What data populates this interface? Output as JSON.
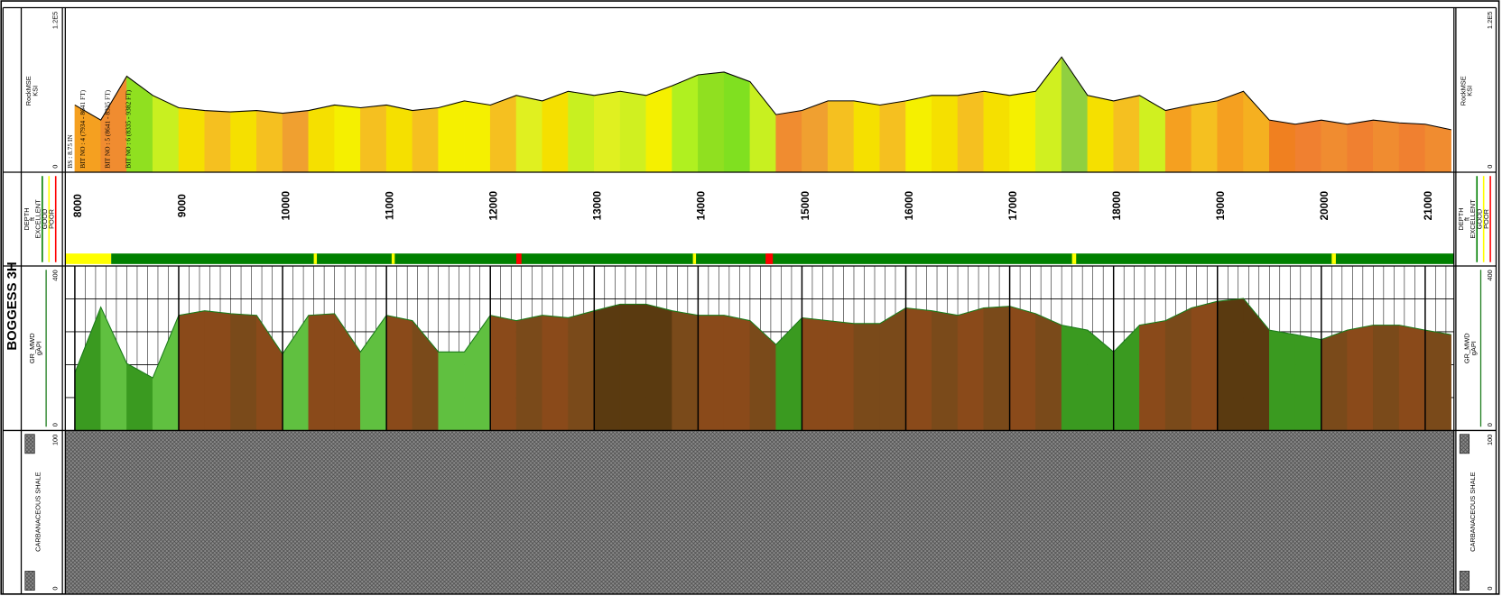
{
  "chart_data": {
    "type": "well_log",
    "well": "BOGGESS 3H",
    "depths": [
      8000,
      8250,
      8500,
      8750,
      9000,
      9250,
      9500,
      9750,
      10000,
      10250,
      10500,
      10750,
      11000,
      11250,
      11500,
      11750,
      12000,
      12250,
      12500,
      12750,
      13000,
      13250,
      13500,
      13750,
      14000,
      14250,
      14500,
      14750,
      15000,
      15250,
      15500,
      15750,
      16000,
      16250,
      16500,
      16750,
      17000,
      17250,
      17500,
      17750,
      18000,
      18250,
      18500,
      18750,
      19000,
      19250,
      19500,
      19750,
      20000,
      20250,
      20500,
      20750,
      21000,
      21250
    ],
    "mse": {
      "name": "RockMSE",
      "unit": "KSI",
      "ylim": [
        0,
        120000
      ],
      "yticks": [
        0,
        {
          "value": 120000,
          "label": "1.2E5"
        }
      ],
      "line_color": "#000000",
      "values": [
        49000,
        38000,
        70000,
        56000,
        47000,
        45000,
        44000,
        45000,
        43000,
        45000,
        49000,
        47000,
        49000,
        45000,
        47000,
        52000,
        49000,
        56000,
        52000,
        59000,
        56000,
        59000,
        56000,
        63000,
        71000,
        73000,
        66000,
        42000,
        45000,
        52000,
        52000,
        49000,
        52000,
        56000,
        56000,
        59000,
        56000,
        59000,
        84000,
        56000,
        52000,
        56000,
        45000,
        49000,
        52000,
        59000,
        38000,
        35000,
        38000,
        35000,
        38000,
        36000,
        35000,
        31000
      ],
      "colors": [
        "#f5a020",
        "#f08c30",
        "#90e020",
        "#c8f020",
        "#f5e000",
        "#f5c020",
        "#f5e000",
        "#f5c020",
        "#f0a030",
        "#f5e000",
        "#f5f000",
        "#f5c020",
        "#f5e000",
        "#f5c020",
        "#f5f000",
        "#f5f000",
        "#f5c020",
        "#e0f020",
        "#f5e000",
        "#c8f020",
        "#e0f020",
        "#d0f020",
        "#f5f000",
        "#b0f020",
        "#90e020",
        "#80e020",
        "#c8f020",
        "#f08c30",
        "#f0a030",
        "#f5c020",
        "#f5e000",
        "#f5c020",
        "#f5f000",
        "#f5e000",
        "#f5c020",
        "#f5e000",
        "#f5f000",
        "#d0f020",
        "#90d040",
        "#f5e000",
        "#f5c020",
        "#d0f020",
        "#f5a020",
        "#f5c020",
        "#f5a020",
        "#f5b020",
        "#f08020",
        "#f08030",
        "#f08c30",
        "#f08030",
        "#f08c30",
        "#f08030",
        "#f08c30",
        "#f08030"
      ]
    },
    "depth_track": {
      "name": "DEPTH",
      "unit": "ft",
      "xlim": [
        7908,
        21277
      ],
      "xticks": [
        8000,
        9000,
        10000,
        11000,
        12000,
        13000,
        14000,
        15000,
        16000,
        17000,
        18000,
        19000,
        20000,
        21000
      ],
      "minor_grid_step": 100
    },
    "quality": {
      "legend": [
        {
          "name": "EXCELLENT",
          "color": "#008000"
        },
        {
          "name": "GOOD",
          "color": "#ffff00"
        },
        {
          "name": "POOR",
          "color": "#ff0000"
        }
      ],
      "intervals": [
        {
          "from": 7908,
          "to": 8350,
          "class": 1
        },
        {
          "from": 8350,
          "to": 21277,
          "class": 0
        },
        {
          "from": 12250,
          "to": 12300,
          "class": 2
        },
        {
          "from": 14650,
          "to": 14720,
          "class": 2
        },
        {
          "from": 10300,
          "to": 10330,
          "class": 1
        },
        {
          "from": 11050,
          "to": 11080,
          "class": 1
        },
        {
          "from": 13950,
          "to": 13980,
          "class": 1
        },
        {
          "from": 17600,
          "to": 17640,
          "class": 1
        },
        {
          "from": 20100,
          "to": 20140,
          "class": 1
        }
      ]
    },
    "gr": {
      "name": "GR_MWD",
      "unit": "gAPI",
      "ylim": [
        0,
        400
      ],
      "yticks": [
        0,
        400
      ],
      "grid": [
        80,
        160,
        240,
        320
      ],
      "line_color": "#1a7a1a",
      "values": [
        140,
        300,
        163,
        128,
        280,
        291,
        284,
        280,
        186,
        280,
        284,
        191,
        280,
        267,
        191,
        191,
        280,
        267,
        280,
        274,
        291,
        307,
        307,
        291,
        280,
        280,
        267,
        209,
        274,
        267,
        260,
        260,
        298,
        291,
        280,
        298,
        302,
        284,
        256,
        244,
        191,
        256,
        267,
        298,
        314,
        321,
        244,
        233,
        221,
        244,
        256,
        256,
        244,
        233
      ],
      "colors": [
        "#3a9a20",
        "#60c040",
        "#3a9a20",
        "#60c040",
        "#8a4a1a",
        "#8a4a1a",
        "#7a4a1a",
        "#8a4a1a",
        "#60c040",
        "#8a4a1a",
        "#8a4a1a",
        "#60c040",
        "#8a4a1a",
        "#7a4a1a",
        "#60c040",
        "#60c040",
        "#8a4a1a",
        "#7a4a1a",
        "#8a4a1a",
        "#7a4a1a",
        "#5a3a10",
        "#5a3a10",
        "#5a3a10",
        "#7a4a1a",
        "#8a4a1a",
        "#8a4a1a",
        "#7a4a1a",
        "#3a9a20",
        "#8a4a1a",
        "#8a4a1a",
        "#7a4a1a",
        "#7a4a1a",
        "#8a4a1a",
        "#7a4a1a",
        "#8a4a1a",
        "#7a4a1a",
        "#8a4a1a",
        "#7a4a1a",
        "#3a9a20",
        "#3a9a20",
        "#3a9a20",
        "#8a4a1a",
        "#7a4a1a",
        "#8a4a1a",
        "#5a3a10",
        "#5a3a10",
        "#3a9a20",
        "#3a9a20",
        "#7a4a1a",
        "#8a4a1a",
        "#7a4a1a",
        "#8a4a1a",
        "#7a4a1a",
        "#3a9a20"
      ]
    },
    "lithology": {
      "name": "CARBANACEOUS SHALE",
      "scale": [
        0,
        100
      ]
    },
    "annotations": [
      {
        "text": "BS : 8.75 IN",
        "depth": 7960
      },
      {
        "text": "BIT NO : 4 (7934 - 8641 FT)",
        "depth": 8080
      },
      {
        "text": "BIT NO : 5 (8641 - 8335 FT)",
        "depth": 8320
      },
      {
        "text": "BIT NO : 6 (8335 - 9382 FT)",
        "depth": 8520
      }
    ]
  }
}
